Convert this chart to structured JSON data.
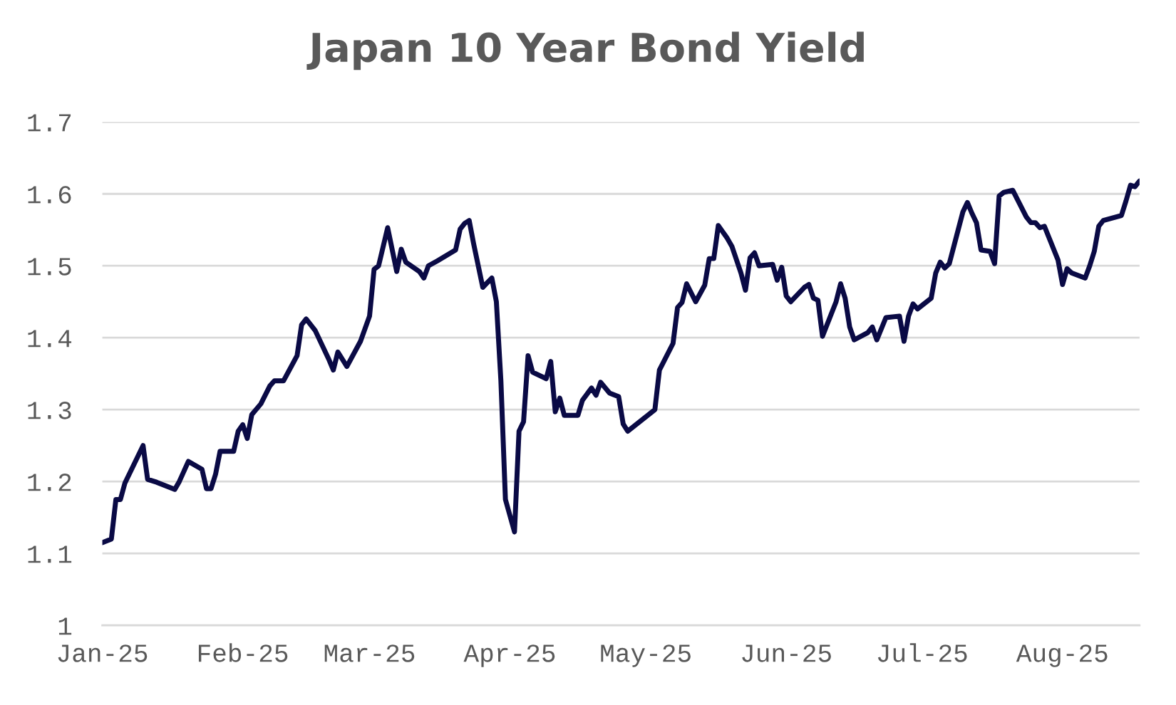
{
  "chart_data": {
    "type": "line",
    "title": "Japan 10 Year Bond Yield",
    "x": [
      "2025-01-01",
      "2025-01-03",
      "2025-01-04",
      "2025-01-05",
      "2025-01-06",
      "2025-01-10",
      "2025-01-11",
      "2025-01-13",
      "2025-01-15",
      "2025-01-17",
      "2025-01-18",
      "2025-01-20",
      "2025-01-23",
      "2025-01-24",
      "2025-01-25",
      "2025-01-26",
      "2025-01-27",
      "2025-01-30",
      "2025-01-31",
      "2025-02-01",
      "2025-02-02",
      "2025-02-03",
      "2025-02-05",
      "2025-02-07",
      "2025-02-08",
      "2025-02-10",
      "2025-02-13",
      "2025-02-14",
      "2025-02-15",
      "2025-02-17",
      "2025-02-20",
      "2025-02-21",
      "2025-02-22",
      "2025-02-24",
      "2025-02-27",
      "2025-03-01",
      "2025-03-02",
      "2025-03-03",
      "2025-03-05",
      "2025-03-07",
      "2025-03-08",
      "2025-03-09",
      "2025-03-12",
      "2025-03-13",
      "2025-03-14",
      "2025-03-16",
      "2025-03-20",
      "2025-03-21",
      "2025-03-22",
      "2025-03-23",
      "2025-03-24",
      "2025-03-26",
      "2025-03-28",
      "2025-03-29",
      "2025-03-30",
      "2025-03-31",
      "2025-04-02",
      "2025-04-03",
      "2025-04-04",
      "2025-04-05",
      "2025-04-06",
      "2025-04-09",
      "2025-04-10",
      "2025-04-11",
      "2025-04-12",
      "2025-04-13",
      "2025-04-16",
      "2025-04-17",
      "2025-04-19",
      "2025-04-20",
      "2025-04-21",
      "2025-04-23",
      "2025-04-25",
      "2025-04-26",
      "2025-04-27",
      "2025-05-03",
      "2025-05-04",
      "2025-05-07",
      "2025-05-08",
      "2025-05-09",
      "2025-05-10",
      "2025-05-12",
      "2025-05-14",
      "2025-05-15",
      "2025-05-16",
      "2025-05-17",
      "2025-05-19",
      "2025-05-20",
      "2025-05-22",
      "2025-05-23",
      "2025-05-24",
      "2025-05-25",
      "2025-05-26",
      "2025-05-29",
      "2025-05-30",
      "2025-05-31",
      "2025-06-01",
      "2025-06-02",
      "2025-06-05",
      "2025-06-06",
      "2025-06-07",
      "2025-06-08",
      "2025-06-09",
      "2025-06-12",
      "2025-06-13",
      "2025-06-14",
      "2025-06-15",
      "2025-06-16",
      "2025-06-19",
      "2025-06-20",
      "2025-06-21",
      "2025-06-23",
      "2025-06-26",
      "2025-06-27",
      "2025-06-28",
      "2025-06-29",
      "2025-06-30",
      "2025-07-03",
      "2025-07-04",
      "2025-07-05",
      "2025-07-06",
      "2025-07-07",
      "2025-07-10",
      "2025-07-11",
      "2025-07-12",
      "2025-07-13",
      "2025-07-14",
      "2025-07-16",
      "2025-07-17",
      "2025-07-18",
      "2025-07-19",
      "2025-07-21",
      "2025-07-24",
      "2025-07-25",
      "2025-07-26",
      "2025-07-27",
      "2025-07-28",
      "2025-07-31",
      "2025-08-01",
      "2025-08-02",
      "2025-08-03",
      "2025-08-06",
      "2025-08-07",
      "2025-08-08",
      "2025-08-09",
      "2025-08-10",
      "2025-08-14",
      "2025-08-15",
      "2025-08-16",
      "2025-08-17",
      "2025-08-18"
    ],
    "series": [
      {
        "color": "#0a0a45",
        "values": [
          1.115,
          1.12,
          1.175,
          1.175,
          1.198,
          1.25,
          1.203,
          1.199,
          1.194,
          1.189,
          1.2,
          1.228,
          1.217,
          1.19,
          1.19,
          1.21,
          1.242,
          1.242,
          1.27,
          1.279,
          1.26,
          1.293,
          1.308,
          1.333,
          1.34,
          1.34,
          1.375,
          1.418,
          1.426,
          1.41,
          1.37,
          1.355,
          1.38,
          1.36,
          1.395,
          1.43,
          1.495,
          1.5,
          1.553,
          1.492,
          1.523,
          1.505,
          1.492,
          1.483,
          1.5,
          1.507,
          1.522,
          1.551,
          1.559,
          1.563,
          1.53,
          1.47,
          1.483,
          1.45,
          1.34,
          1.175,
          1.13,
          1.27,
          1.283,
          1.375,
          1.352,
          1.343,
          1.367,
          1.297,
          1.316,
          1.292,
          1.292,
          1.313,
          1.33,
          1.32,
          1.338,
          1.323,
          1.318,
          1.28,
          1.27,
          1.3,
          1.355,
          1.392,
          1.442,
          1.449,
          1.475,
          1.45,
          1.473,
          1.51,
          1.51,
          1.556,
          1.538,
          1.527,
          1.49,
          1.466,
          1.511,
          1.518,
          1.5,
          1.502,
          1.48,
          1.498,
          1.458,
          1.45,
          1.47,
          1.474,
          1.455,
          1.452,
          1.402,
          1.45,
          1.475,
          1.455,
          1.415,
          1.397,
          1.407,
          1.415,
          1.397,
          1.428,
          1.43,
          1.395,
          1.43,
          1.447,
          1.44,
          1.455,
          1.49,
          1.505,
          1.497,
          1.503,
          1.575,
          1.588,
          1.573,
          1.56,
          1.522,
          1.52,
          1.503,
          1.597,
          1.602,
          1.605,
          1.568,
          1.56,
          1.56,
          1.553,
          1.555,
          1.508,
          1.474,
          1.496,
          1.49,
          1.483,
          1.5,
          1.52,
          1.555,
          1.563,
          1.57,
          1.59,
          1.612,
          1.61,
          1.618
        ]
      }
    ],
    "xlim": [
      "2025-01-01",
      "2025-08-18"
    ],
    "xticks": [
      {
        "value": "2025-01-01",
        "label": "Jan-25"
      },
      {
        "value": "2025-02-01",
        "label": "Feb-25"
      },
      {
        "value": "2025-03-01",
        "label": "Mar-25"
      },
      {
        "value": "2025-04-01",
        "label": "Apr-25"
      },
      {
        "value": "2025-05-01",
        "label": "May-25"
      },
      {
        "value": "2025-06-01",
        "label": "Jun-25"
      },
      {
        "value": "2025-07-01",
        "label": "Jul-25"
      },
      {
        "value": "2025-08-01",
        "label": "Aug-25"
      }
    ],
    "ylim": [
      1,
      1.7
    ],
    "yticks": [
      1,
      1.1,
      1.2,
      1.3,
      1.4,
      1.5,
      1.6,
      1.7
    ],
    "grid": "y",
    "marker": "none",
    "line_style": "solid"
  }
}
